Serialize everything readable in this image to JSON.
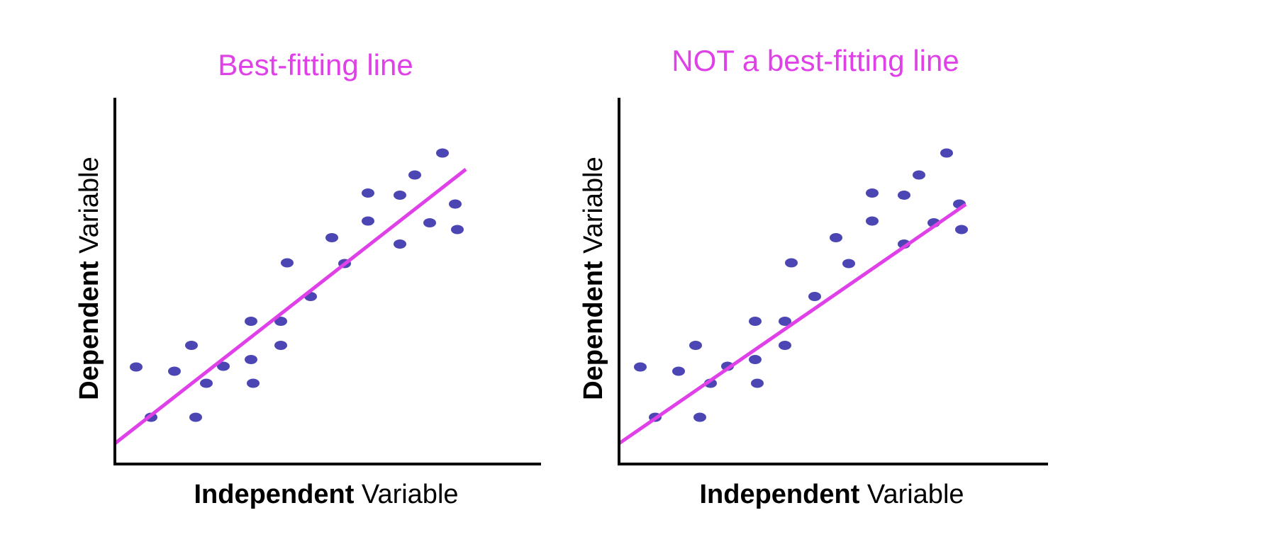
{
  "colors": {
    "title": "#e040e8",
    "line": "#e040e8",
    "point": "#4b46b4",
    "axis": "#000000"
  },
  "chart_data": [
    {
      "type": "scatter",
      "title": "Best-fitting line",
      "xlabel_bold": "Independent",
      "xlabel_rest": "Variable",
      "ylabel_bold": "Dependent",
      "ylabel_rest": "Variable",
      "xlim": [
        0,
        100
      ],
      "ylim": [
        0,
        100
      ],
      "grid": false,
      "points": [
        [
          5,
          27.4
        ],
        [
          8.5,
          13.2
        ],
        [
          14,
          26.2
        ],
        [
          18,
          33.5
        ],
        [
          19,
          13.2
        ],
        [
          21.5,
          22.8
        ],
        [
          25.5,
          27.6
        ],
        [
          32,
          29.5
        ],
        [
          32.5,
          22.8
        ],
        [
          32,
          40.3
        ],
        [
          39,
          40.3
        ],
        [
          39,
          33.5
        ],
        [
          40.5,
          56.8
        ],
        [
          46,
          47.3
        ],
        [
          51,
          63.9
        ],
        [
          54,
          56.6
        ],
        [
          59.5,
          76.5
        ],
        [
          59.5,
          68.6
        ],
        [
          67,
          62.1
        ],
        [
          67,
          75.9
        ],
        [
          70.5,
          81.6
        ],
        [
          74,
          68.1
        ],
        [
          77,
          87.8
        ],
        [
          80,
          73.4
        ],
        [
          80.5,
          66.2
        ]
      ],
      "fit_line": [
        [
          0,
          5.8
        ],
        [
          82.5,
          83.2
        ]
      ]
    },
    {
      "type": "scatter",
      "title": "NOT a best-fitting line",
      "xlabel_bold": "Independent",
      "xlabel_rest": "Variable",
      "ylabel_bold": "Dependent",
      "ylabel_rest": "Variable",
      "xlim": [
        0,
        100
      ],
      "ylim": [
        0,
        100
      ],
      "grid": false,
      "points": [
        [
          5,
          27.4
        ],
        [
          8.5,
          13.2
        ],
        [
          14,
          26.2
        ],
        [
          18,
          33.5
        ],
        [
          19,
          13.2
        ],
        [
          21.5,
          22.8
        ],
        [
          25.5,
          27.6
        ],
        [
          32,
          29.5
        ],
        [
          32.5,
          22.8
        ],
        [
          32,
          40.3
        ],
        [
          39,
          40.3
        ],
        [
          39,
          33.5
        ],
        [
          40.5,
          56.8
        ],
        [
          46,
          47.3
        ],
        [
          51,
          63.9
        ],
        [
          54,
          56.6
        ],
        [
          59.5,
          76.5
        ],
        [
          59.5,
          68.6
        ],
        [
          67,
          62.1
        ],
        [
          67,
          75.9
        ],
        [
          70.5,
          81.6
        ],
        [
          74,
          68.1
        ],
        [
          77,
          87.8
        ],
        [
          80,
          73.4
        ],
        [
          80.5,
          66.2
        ]
      ],
      "fit_line": [
        [
          0,
          5.8
        ],
        [
          81.5,
          73.3
        ]
      ]
    }
  ]
}
